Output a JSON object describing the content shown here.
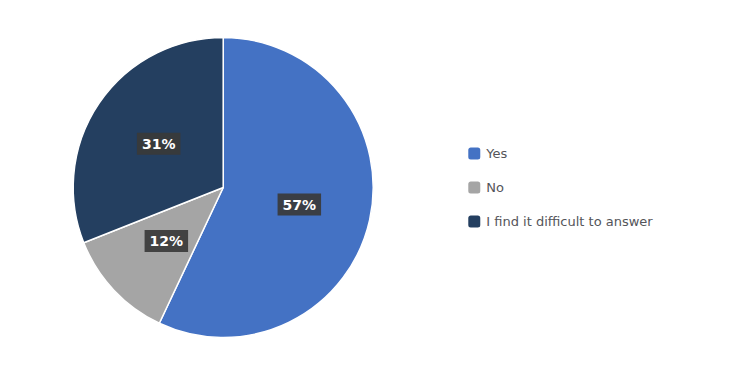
{
  "chart_data": {
    "type": "pie",
    "categories": [
      "Yes",
      "No",
      "I find it difficult to answer"
    ],
    "values": [
      57,
      12,
      31
    ],
    "value_labels": [
      "57%",
      "12%",
      "31%"
    ],
    "colors": [
      "#4472C4",
      "#A5A5A5",
      "#243F60"
    ],
    "data_labels": true,
    "legend": "right"
  }
}
